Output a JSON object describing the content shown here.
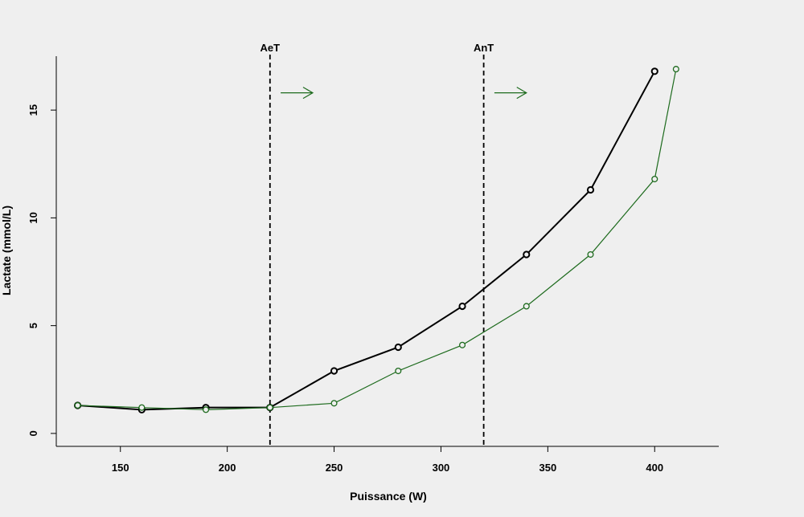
{
  "chart_data": {
    "type": "line",
    "title": "",
    "xlabel": "Puissance (W)",
    "ylabel": "Lactate (mmol/L)",
    "xlim": [
      120,
      430
    ],
    "ylim": [
      -0.6,
      17.5
    ],
    "xticks": [
      150,
      200,
      250,
      300,
      350,
      400
    ],
    "yticks": [
      0,
      5,
      10,
      15
    ],
    "grid": false,
    "legend": "none",
    "series": [
      {
        "color": "#000000",
        "x": [
          130,
          160,
          190,
          220,
          250,
          280,
          310,
          340,
          370,
          400
        ],
        "y": [
          1.3,
          1.1,
          1.2,
          1.2,
          2.9,
          4.0,
          5.9,
          8.3,
          11.3,
          16.8
        ]
      },
      {
        "color": "#1e6b1e",
        "x": [
          130,
          160,
          190,
          220,
          250,
          280,
          310,
          340,
          370,
          400,
          410
        ],
        "y": [
          1.3,
          1.2,
          1.1,
          1.2,
          1.4,
          2.9,
          4.1,
          5.9,
          8.3,
          11.8,
          16.9
        ]
      }
    ],
    "vertical_lines": [
      {
        "x": 220,
        "label": "AeT",
        "style": "dashed",
        "color": "#000000"
      },
      {
        "x": 320,
        "label": "AnT",
        "style": "dashed",
        "color": "#000000"
      }
    ],
    "arrows": [
      {
        "x_from": 225,
        "x_to": 240,
        "y": 15.8,
        "color": "#1e6b1e",
        "direction": "right"
      },
      {
        "x_from": 325,
        "x_to": 340,
        "y": 15.8,
        "color": "#1e6b1e",
        "direction": "right"
      }
    ]
  }
}
